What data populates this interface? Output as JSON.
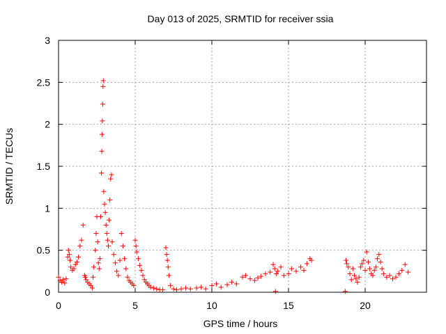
{
  "chart_data": {
    "type": "scatter",
    "title": "Day 013 of 2025, SRMTID for receiver ssia",
    "xlabel": "GPS time / hours",
    "ylabel": "SRMTID / TECUs",
    "xlim": [
      0,
      24
    ],
    "ylim": [
      0,
      3
    ],
    "xticks": [
      0,
      5,
      10,
      15,
      20
    ],
    "yticks": [
      0,
      0.5,
      1,
      1.5,
      2,
      2.5,
      3
    ],
    "xtick_labels": [
      "0",
      "5",
      "10",
      "15",
      "20"
    ],
    "ytick_labels": [
      "0",
      "0.5",
      "1",
      "1.5",
      "2",
      "2.5",
      "3"
    ],
    "grid": true,
    "marker": "+",
    "color": "#ff0000",
    "series": [
      {
        "name": "SRMTID",
        "x": [
          0.0,
          0.1,
          0.2,
          0.3,
          0.4,
          0.5,
          0.6,
          0.65,
          0.7,
          0.75,
          0.8,
          0.9,
          1.0,
          1.1,
          1.2,
          1.3,
          1.4,
          1.5,
          1.6,
          1.7,
          1.75,
          1.8,
          1.9,
          2.0,
          2.1,
          2.2,
          2.25,
          2.3,
          2.4,
          2.45,
          2.5,
          2.55,
          2.6,
          2.65,
          2.7,
          2.75,
          2.8,
          2.82,
          2.84,
          2.86,
          2.88,
          2.9,
          2.92,
          2.95,
          3.0,
          3.05,
          3.1,
          3.15,
          3.2,
          3.25,
          3.3,
          3.35,
          3.4,
          3.45,
          3.5,
          3.6,
          3.7,
          3.8,
          3.9,
          4.0,
          4.1,
          4.2,
          4.3,
          4.4,
          4.5,
          4.6,
          4.7,
          4.8,
          4.9,
          5.0,
          5.05,
          5.1,
          5.2,
          5.3,
          5.4,
          5.5,
          5.6,
          5.7,
          5.8,
          5.9,
          6.0,
          6.2,
          6.4,
          6.6,
          6.8,
          7.0,
          7.05,
          7.1,
          7.15,
          7.2,
          7.3,
          7.5,
          7.7,
          8.0,
          8.3,
          8.6,
          9.0,
          9.3,
          9.6,
          10.0,
          10.3,
          10.6,
          11.0,
          11.3,
          11.6,
          12.0,
          12.2,
          12.5,
          12.8,
          13.0,
          13.2,
          13.5,
          13.8,
          14.0,
          14.1,
          14.2,
          14.3,
          14.5,
          14.7,
          15.0,
          15.2,
          15.5,
          15.8,
          16.0,
          16.2,
          16.4,
          16.5,
          18.75,
          18.8,
          18.9,
          19.0,
          19.1,
          19.2,
          19.3,
          19.4,
          19.5,
          19.6,
          19.7,
          19.8,
          19.9,
          20.0,
          20.1,
          20.2,
          20.3,
          20.4,
          20.5,
          20.6,
          20.7,
          20.8,
          20.9,
          21.0,
          21.1,
          21.2,
          21.4,
          21.6,
          21.8,
          22.0,
          22.2,
          22.4,
          22.6,
          22.8,
          14.15,
          18.7
        ],
        "y": [
          0.18,
          0.14,
          0.12,
          0.15,
          0.11,
          0.16,
          0.42,
          0.5,
          0.45,
          0.38,
          0.3,
          0.26,
          0.28,
          0.33,
          0.36,
          0.42,
          0.55,
          0.62,
          0.8,
          0.2,
          0.18,
          0.15,
          0.12,
          0.1,
          0.08,
          0.05,
          0.18,
          0.3,
          0.5,
          0.7,
          0.9,
          0.6,
          0.35,
          0.28,
          0.4,
          0.9,
          1.42,
          1.68,
          1.88,
          2.04,
          2.24,
          2.45,
          2.52,
          1.2,
          1.05,
          0.95,
          0.8,
          0.7,
          0.62,
          0.55,
          0.86,
          1.1,
          1.35,
          1.4,
          0.6,
          0.45,
          0.35,
          0.25,
          0.2,
          0.38,
          0.7,
          0.55,
          0.4,
          0.28,
          0.18,
          0.14,
          0.12,
          0.1,
          0.08,
          0.62,
          0.55,
          0.48,
          0.4,
          0.32,
          0.26,
          0.2,
          0.15,
          0.12,
          0.1,
          0.08,
          0.06,
          0.05,
          0.04,
          0.03,
          0.03,
          0.53,
          0.45,
          0.38,
          0.3,
          0.2,
          0.08,
          0.04,
          0.03,
          0.04,
          0.05,
          0.04,
          0.05,
          0.06,
          0.04,
          0.08,
          0.1,
          0.06,
          0.09,
          0.12,
          0.1,
          0.18,
          0.2,
          0.16,
          0.14,
          0.17,
          0.19,
          0.22,
          0.24,
          0.33,
          0.28,
          0.22,
          0.25,
          0.3,
          0.2,
          0.22,
          0.28,
          0.25,
          0.3,
          0.26,
          0.34,
          0.4,
          0.38,
          0.38,
          0.34,
          0.3,
          0.22,
          0.15,
          0.28,
          0.2,
          0.16,
          0.12,
          0.18,
          0.3,
          0.34,
          0.38,
          0.26,
          0.48,
          0.36,
          0.28,
          0.22,
          0.2,
          0.26,
          0.3,
          0.4,
          0.45,
          0.36,
          0.28,
          0.22,
          0.18,
          0.2,
          0.16,
          0.18,
          0.22,
          0.26,
          0.33,
          0.24,
          0.01,
          0.01
        ]
      }
    ]
  }
}
